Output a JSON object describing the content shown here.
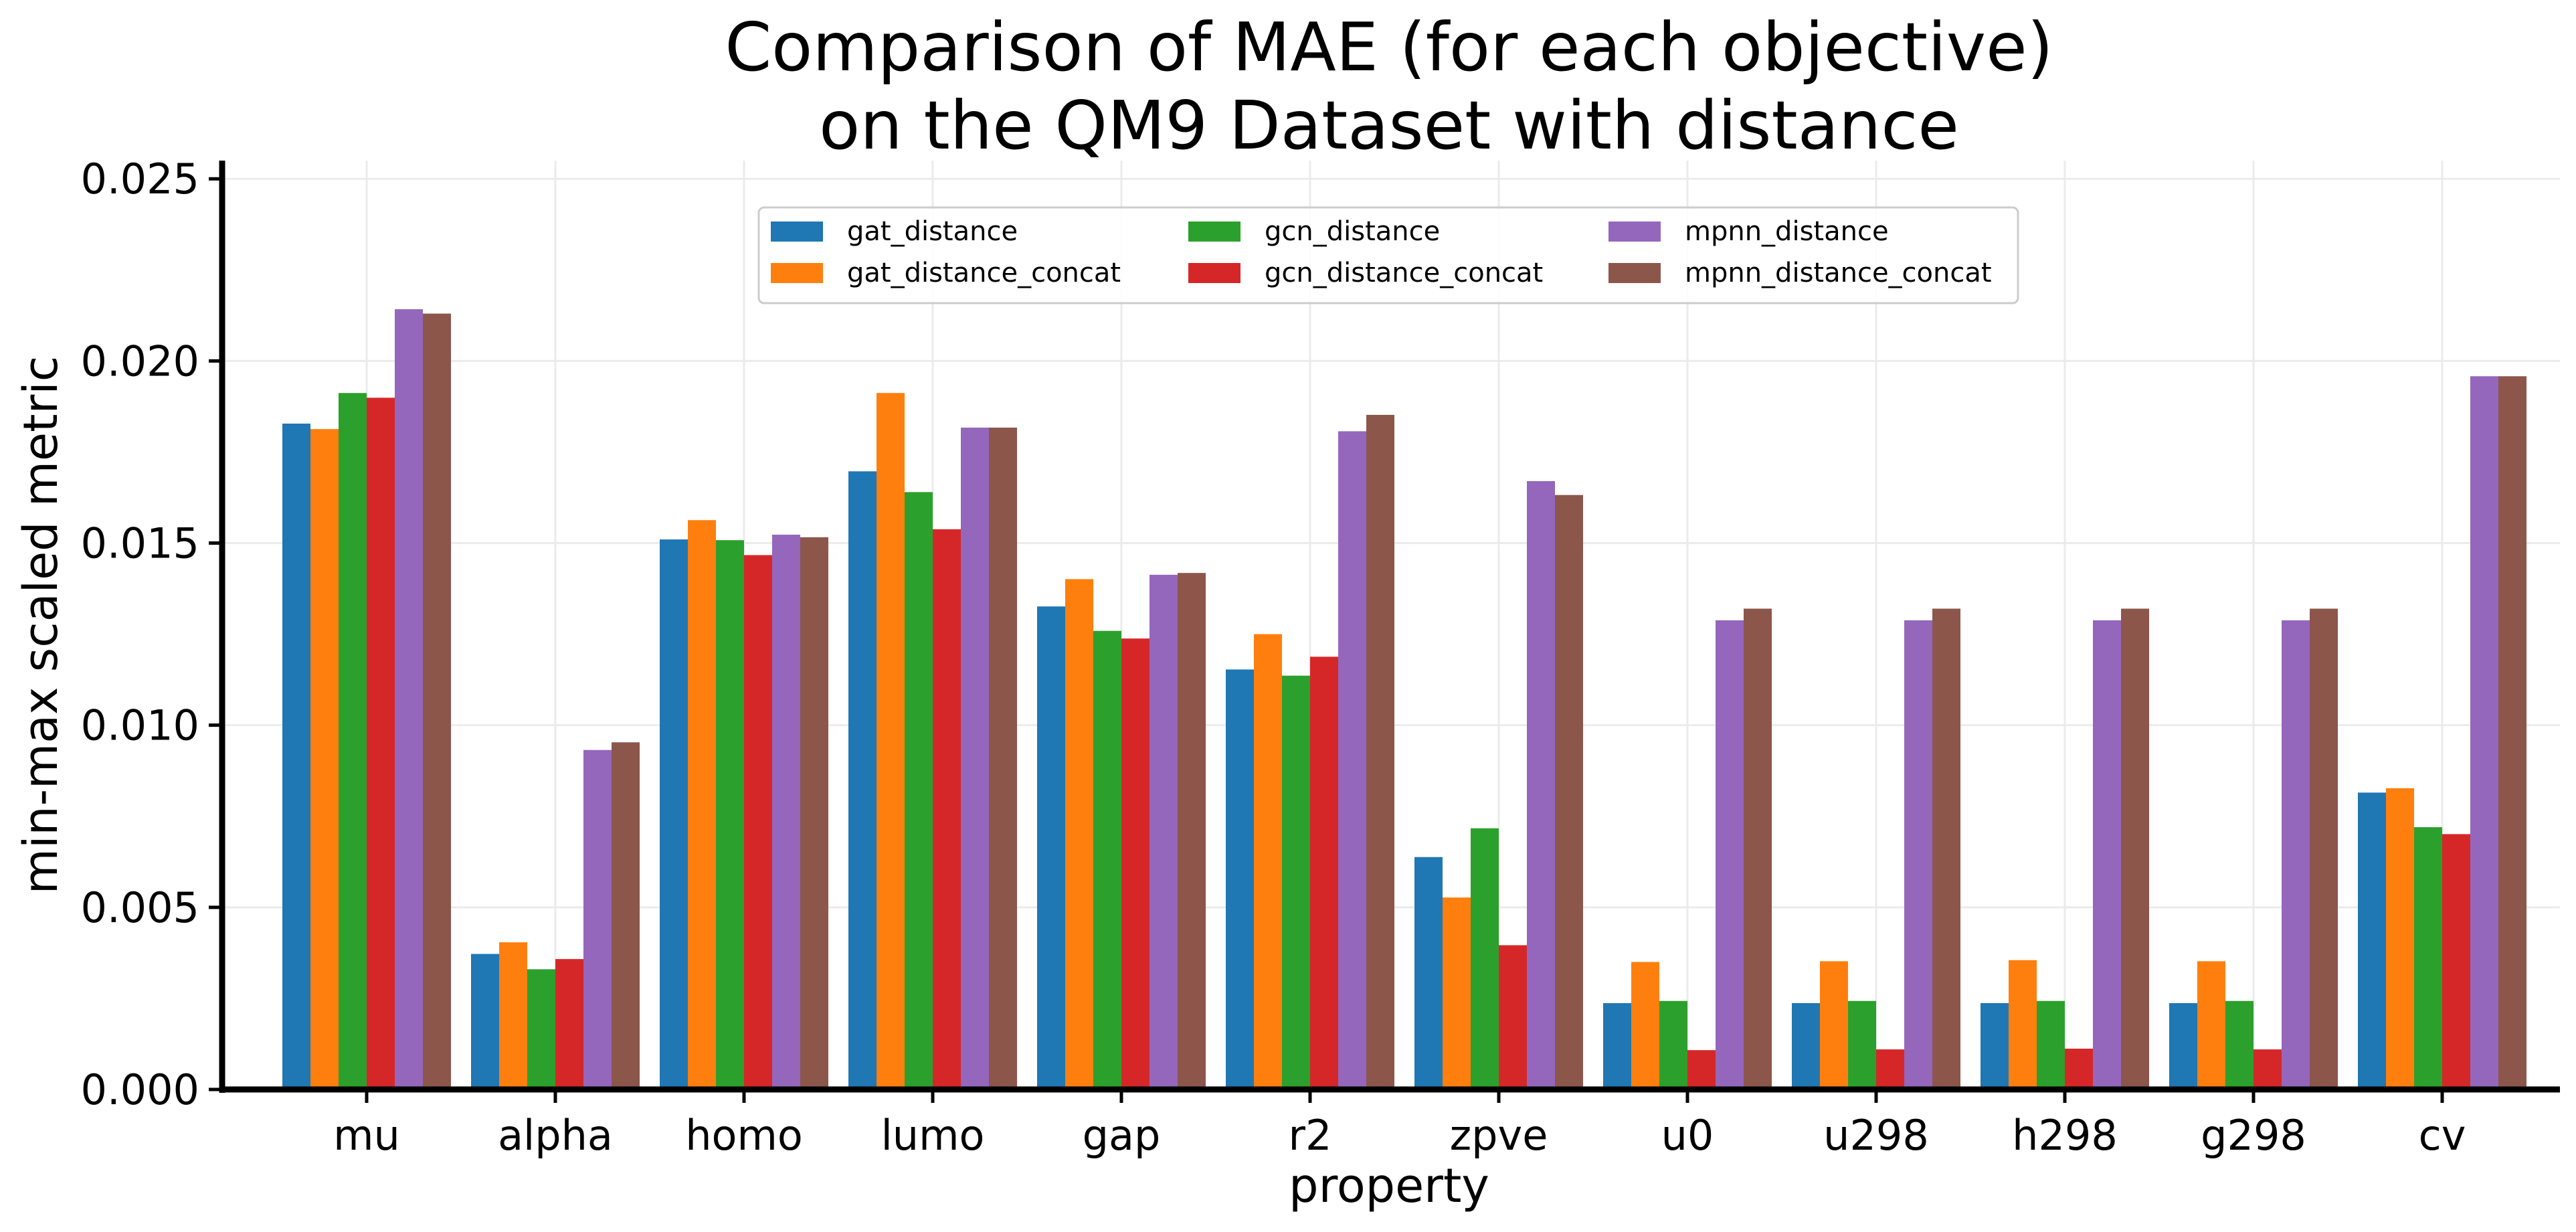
{
  "chart_data": {
    "type": "bar",
    "title": "Comparison of MAE (for each objective)\non the QM9 Dataset with distance",
    "xlabel": "property",
    "ylabel": "min-max scaled metric",
    "categories": [
      "mu",
      "alpha",
      "homo",
      "lumo",
      "gap",
      "r2",
      "zpve",
      "u0",
      "u298",
      "h298",
      "g298",
      "cv"
    ],
    "ylim": [
      0,
      0.0255
    ],
    "yticks": [
      {
        "value": 0.0,
        "label": "0.000"
      },
      {
        "value": 0.005,
        "label": "0.005"
      },
      {
        "value": 0.01,
        "label": "0.010"
      },
      {
        "value": 0.015,
        "label": "0.015"
      },
      {
        "value": 0.02,
        "label": "0.020"
      },
      {
        "value": 0.025,
        "label": "0.025"
      }
    ],
    "grid": true,
    "legend_position": "top-center",
    "legend_columns": 3,
    "series": [
      {
        "name": "gat_distance",
        "color": "#1f77b4",
        "values": [
          0.01828,
          0.00372,
          0.0151,
          0.01697,
          0.01326,
          0.01153,
          0.00638,
          0.00237,
          0.00237,
          0.00237,
          0.00237,
          0.00815
        ]
      },
      {
        "name": "gat_distance_concat",
        "color": "#ff7f0e",
        "values": [
          0.01813,
          0.00404,
          0.01563,
          0.01912,
          0.01401,
          0.0125,
          0.00527,
          0.0035,
          0.00352,
          0.00355,
          0.00352,
          0.00827
        ]
      },
      {
        "name": "gcn_distance",
        "color": "#2ca02c",
        "values": [
          0.01912,
          0.0033,
          0.01508,
          0.0164,
          0.01259,
          0.01136,
          0.00717,
          0.00243,
          0.00243,
          0.00243,
          0.00243,
          0.0072
        ]
      },
      {
        "name": "gcn_distance_concat",
        "color": "#d62728",
        "values": [
          0.01899,
          0.00358,
          0.01467,
          0.01538,
          0.01238,
          0.01188,
          0.00396,
          0.00108,
          0.0011,
          0.00112,
          0.0011,
          0.00701
        ]
      },
      {
        "name": "mpnn_distance",
        "color": "#9467bd",
        "values": [
          0.02142,
          0.00932,
          0.01523,
          0.01817,
          0.01413,
          0.01807,
          0.0167,
          0.01288,
          0.01288,
          0.01288,
          0.01288,
          0.01958
        ]
      },
      {
        "name": "mpnn_distance_concat",
        "color": "#8c564b",
        "values": [
          0.0213,
          0.00953,
          0.01516,
          0.01817,
          0.01418,
          0.01852,
          0.01632,
          0.0132,
          0.0132,
          0.0132,
          0.0132,
          0.01958
        ]
      }
    ]
  }
}
